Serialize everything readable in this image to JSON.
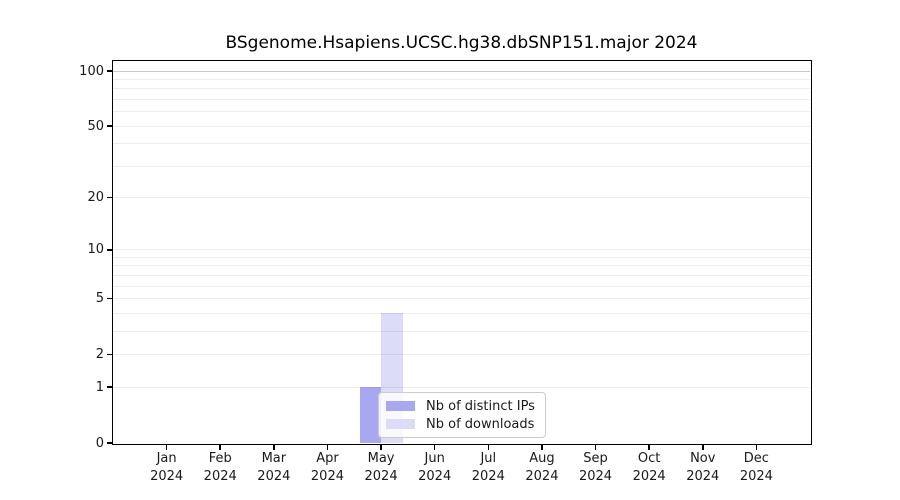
{
  "figure": {
    "title": "BSgenome.Hsapiens.UCSC.hg38.dbSNP151.major 2024"
  },
  "chart_data": {
    "type": "bar",
    "title": "BSgenome.Hsapiens.UCSC.hg38.dbSNP151.major 2024",
    "x_year": "2024",
    "categories": [
      "Jan",
      "Feb",
      "Mar",
      "Apr",
      "May",
      "Jun",
      "Jul",
      "Aug",
      "Sep",
      "Oct",
      "Nov",
      "Dec"
    ],
    "series": [
      {
        "name": "Nb of distinct IPs",
        "color": "#a8a8f0",
        "values": [
          0,
          0,
          0,
          0,
          1,
          0,
          0,
          0,
          0,
          0,
          0,
          0
        ]
      },
      {
        "name": "Nb of downloads",
        "color": "#dcdcf8",
        "values": [
          0,
          0,
          0,
          0,
          4,
          0,
          0,
          0,
          0,
          0,
          0,
          0
        ]
      }
    ],
    "y_scale": "log1p",
    "ylim": [
      0,
      113
    ],
    "y_ticks": [
      0,
      1,
      2,
      5,
      10,
      20,
      50,
      100
    ],
    "grid": {
      "on": true,
      "minor_values": [
        1,
        2,
        3,
        4,
        5,
        6,
        7,
        8,
        9,
        10,
        20,
        30,
        40,
        50,
        60,
        70,
        80,
        90
      ],
      "major_values": [
        100
      ]
    },
    "legend": {
      "position": "lower center",
      "items": [
        "Nb of distinct IPs",
        "Nb of downloads"
      ]
    }
  },
  "colors": {
    "background": "#ffffff",
    "bar_distinct_ips": "#a8a8f0",
    "bar_downloads": "#dcdcf8",
    "grid_minor_overlay": "rgba(0,0,0,0.075)",
    "grid_major_overlay": "rgba(0,0,0,0.22)",
    "axis_spine": "#000000",
    "tick_text": "#1a1a1a",
    "legend_border": "#cccccc"
  }
}
